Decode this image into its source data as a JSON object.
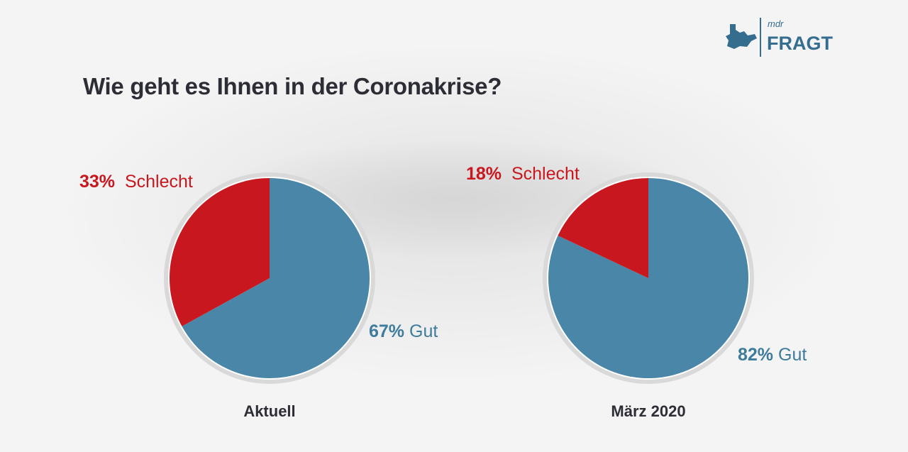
{
  "title": "Wie geht es Ihnen in der Coronakrise?",
  "logo": {
    "text_top": "mdr",
    "text_main": "FRAGT"
  },
  "colors": {
    "schlecht": "#c8171e",
    "gut": "#4a86a7"
  },
  "chart_data": [
    {
      "type": "pie",
      "caption": "Aktuell",
      "slices": [
        {
          "label": "Gut",
          "value": 67,
          "display": "67%"
        },
        {
          "label": "Schlecht",
          "value": 33,
          "display": "33%"
        }
      ]
    },
    {
      "type": "pie",
      "caption": "März 2020",
      "slices": [
        {
          "label": "Gut",
          "value": 82,
          "display": "82%"
        },
        {
          "label": "Schlecht",
          "value": 18,
          "display": "18%"
        }
      ]
    }
  ]
}
